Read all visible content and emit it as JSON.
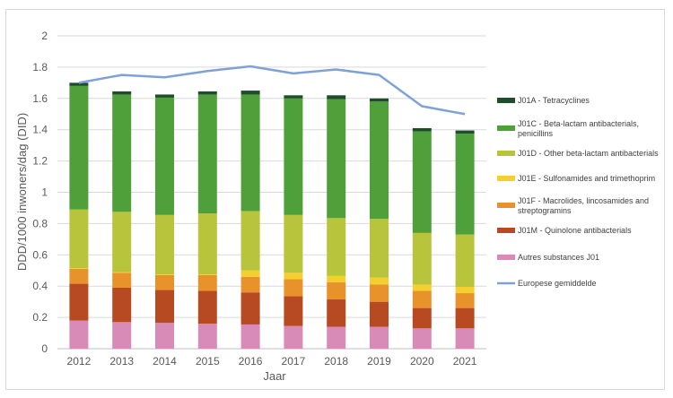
{
  "chart_data": {
    "type": "bar",
    "stacked": true,
    "xlabel": "Jaar",
    "ylabel": "DDD/1000 inwoners/dag (DID)",
    "ylim": [
      0,
      2
    ],
    "yticks": [
      "0",
      "0.2",
      "0.4",
      "0.6",
      "0.8",
      "1",
      "1.2",
      "1.4",
      "1.6",
      "1.8",
      "2"
    ],
    "grid": true,
    "legend_position": "right",
    "categories": [
      "2012",
      "2013",
      "2014",
      "2015",
      "2016",
      "2017",
      "2018",
      "2019",
      "2020",
      "2021"
    ],
    "series": [
      {
        "name": "Autres substances J01",
        "color": "#d98bb8",
        "values": [
          0.18,
          0.17,
          0.165,
          0.16,
          0.155,
          0.145,
          0.14,
          0.14,
          0.13,
          0.13
        ]
      },
      {
        "name": "J01M - Quinolone antibacterials",
        "color": "#b84a22",
        "values": [
          0.235,
          0.22,
          0.21,
          0.21,
          0.205,
          0.19,
          0.175,
          0.16,
          0.13,
          0.13
        ]
      },
      {
        "name": "J01F - Macrolides, lincosamides and streptogramins",
        "color": "#e8922b",
        "values": [
          0.095,
          0.095,
          0.095,
          0.1,
          0.1,
          0.11,
          0.11,
          0.11,
          0.11,
          0.095
        ]
      },
      {
        "name": "J01E - Sulfonamides and trimethoprim",
        "color": "#f5cf2e",
        "values": [
          0.005,
          0.005,
          0.005,
          0.005,
          0.04,
          0.04,
          0.04,
          0.045,
          0.04,
          0.04
        ]
      },
      {
        "name": "J01D - Other beta-lactam antibacterials",
        "color": "#b8c43b",
        "values": [
          0.375,
          0.385,
          0.38,
          0.39,
          0.38,
          0.37,
          0.37,
          0.375,
          0.33,
          0.335
        ]
      },
      {
        "name": "J01C - Beta-lactam antibacterials, penicillins",
        "color": "#4f9f3b",
        "values": [
          0.79,
          0.75,
          0.75,
          0.76,
          0.745,
          0.745,
          0.76,
          0.75,
          0.65,
          0.645
        ]
      },
      {
        "name": "J01A - Tetracyclines",
        "color": "#1e4d2b",
        "values": [
          0.02,
          0.02,
          0.02,
          0.02,
          0.025,
          0.02,
          0.025,
          0.02,
          0.02,
          0.02
        ]
      }
    ],
    "line": {
      "name": "Europese gemiddelde",
      "color": "#7ea2d8",
      "values": [
        1.7,
        1.75,
        1.735,
        1.775,
        1.805,
        1.76,
        1.785,
        1.75,
        1.55,
        1.5
      ]
    },
    "legend_order": [
      "J01A - Tetracyclines",
      "J01C - Beta-lactam antibacterials, penicillins",
      "J01D - Other beta-lactam antibacterials",
      "J01E - Sulfonamides and trimethoprim",
      "J01F - Macrolides, lincosamides and streptogramins",
      "J01M - Quinolone antibacterials",
      "Autres substances J01",
      "Europese gemiddelde"
    ]
  }
}
